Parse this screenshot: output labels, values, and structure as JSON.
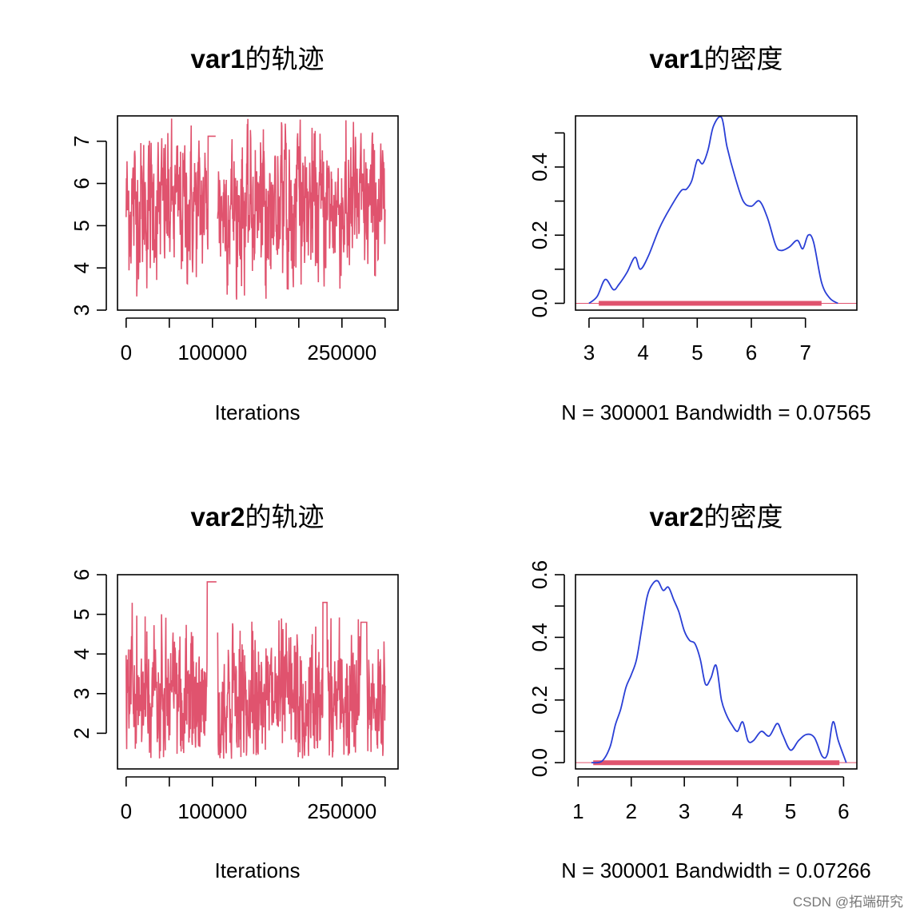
{
  "colors": {
    "trace": "#e0536e",
    "density": "#2a3fd6",
    "rug": "#e0536e",
    "axis": "#000000"
  },
  "watermark": "CSDN @拓端研究",
  "chart_data": [
    {
      "id": "var1-trace",
      "type": "line",
      "title_var": "var1",
      "title_suffix": "的轨迹",
      "xlabel": "Iterations",
      "xlim": [
        -10000,
        315000
      ],
      "ylim": [
        3,
        7.6
      ],
      "xticks": [
        0,
        50000,
        100000,
        150000,
        200000,
        250000,
        300000
      ],
      "xtick_labels": [
        "0",
        "",
        "100000",
        "",
        "",
        "250000",
        ""
      ],
      "yticks": [
        3,
        4,
        5,
        6,
        7
      ],
      "yticks_labels": [
        "3",
        "4",
        "5",
        "6",
        "7"
      ],
      "n_iter": 300001,
      "range": [
        3.18,
        7.55
      ],
      "mean": 5.45,
      "plateaus": [
        [
          95000,
          104000,
          7.12
        ]
      ],
      "gaps": [
        [
          97000,
          106000
        ]
      ],
      "series": [
        {
          "values_summary": "MCMC trace, values mostly between 3.6 and 7.2"
        }
      ]
    },
    {
      "id": "var1-density",
      "type": "line",
      "title_var": "var1",
      "title_suffix": "的密度",
      "xlabel": "N = 300001   Bandwidth = 0.07565",
      "xlim": [
        2.75,
        7.95
      ],
      "ylim": [
        -0.02,
        0.55
      ],
      "xticks": [
        3,
        4,
        5,
        6,
        7
      ],
      "xtick_labels": [
        "3",
        "4",
        "5",
        "6",
        "7"
      ],
      "yticks": [
        0,
        0.1,
        0.2,
        0.3,
        0.4,
        0.5
      ],
      "yticks_labels": [
        "0.0",
        "",
        "0.2",
        "",
        "0.4",
        ""
      ],
      "x": [
        3.0,
        3.15,
        3.3,
        3.45,
        3.55,
        3.7,
        3.85,
        3.95,
        4.1,
        4.3,
        4.5,
        4.7,
        4.8,
        4.9,
        5.0,
        5.1,
        5.2,
        5.3,
        5.45,
        5.55,
        5.7,
        5.85,
        6.0,
        6.15,
        6.3,
        6.45,
        6.55,
        6.7,
        6.85,
        6.95,
        7.05,
        7.15,
        7.3,
        7.45,
        7.6
      ],
      "y": [
        0.0,
        0.02,
        0.07,
        0.04,
        0.055,
        0.09,
        0.135,
        0.1,
        0.14,
        0.22,
        0.28,
        0.33,
        0.335,
        0.36,
        0.42,
        0.41,
        0.45,
        0.52,
        0.545,
        0.46,
        0.37,
        0.3,
        0.285,
        0.3,
        0.25,
        0.17,
        0.155,
        0.165,
        0.185,
        0.16,
        0.2,
        0.18,
        0.06,
        0.015,
        0.0
      ],
      "rug_range": [
        3.2,
        7.3
      ]
    },
    {
      "id": "var2-trace",
      "type": "line",
      "title_var": "var2",
      "title_suffix": "的轨迹",
      "xlabel": "Iterations",
      "xlim": [
        -10000,
        315000
      ],
      "ylim": [
        1.1,
        6.0
      ],
      "xticks": [
        0,
        50000,
        100000,
        150000,
        200000,
        250000,
        300000
      ],
      "xtick_labels": [
        "0",
        "",
        "100000",
        "",
        "",
        "250000",
        ""
      ],
      "yticks": [
        2,
        3,
        4,
        5,
        6
      ],
      "yticks_labels": [
        "2",
        "3",
        "4",
        "5",
        "6"
      ],
      "n_iter": 300001,
      "range": [
        1.35,
        5.82
      ],
      "mean": 2.85,
      "plateaus": [
        [
          94000,
          105000,
          5.82
        ],
        [
          228000,
          233000,
          5.3
        ],
        [
          272000,
          279000,
          4.8
        ]
      ],
      "gaps": [
        [
          97000,
          106000
        ]
      ],
      "series": [
        {
          "values_summary": "MCMC trace, values mostly between 1.6 and 4.2"
        }
      ]
    },
    {
      "id": "var2-density",
      "type": "line",
      "title_var": "var2",
      "title_suffix": "的密度",
      "xlabel": "N = 300001   Bandwidth = 0.07266",
      "xlim": [
        0.95,
        6.25
      ],
      "ylim": [
        -0.02,
        0.6
      ],
      "xticks": [
        1,
        2,
        3,
        4,
        5,
        6
      ],
      "xtick_labels": [
        "1",
        "2",
        "3",
        "4",
        "5",
        "6"
      ],
      "yticks": [
        0,
        0.1,
        0.2,
        0.3,
        0.4,
        0.5,
        0.6
      ],
      "yticks_labels": [
        "0.0",
        "",
        "0.2",
        "",
        "0.4",
        "",
        "0.6"
      ],
      "x": [
        1.25,
        1.45,
        1.6,
        1.7,
        1.8,
        1.9,
        2.0,
        2.1,
        2.2,
        2.3,
        2.4,
        2.5,
        2.6,
        2.7,
        2.8,
        2.9,
        3.0,
        3.1,
        3.2,
        3.3,
        3.4,
        3.5,
        3.6,
        3.7,
        3.8,
        3.9,
        4.0,
        4.1,
        4.2,
        4.3,
        4.45,
        4.6,
        4.75,
        4.85,
        5.0,
        5.15,
        5.3,
        5.45,
        5.6,
        5.7,
        5.8,
        5.9,
        6.05
      ],
      "y": [
        0.0,
        0.005,
        0.05,
        0.12,
        0.17,
        0.24,
        0.28,
        0.33,
        0.43,
        0.53,
        0.57,
        0.58,
        0.55,
        0.56,
        0.52,
        0.48,
        0.42,
        0.39,
        0.38,
        0.33,
        0.25,
        0.27,
        0.31,
        0.2,
        0.15,
        0.12,
        0.1,
        0.13,
        0.07,
        0.07,
        0.1,
        0.085,
        0.125,
        0.09,
        0.04,
        0.07,
        0.09,
        0.08,
        0.02,
        0.03,
        0.13,
        0.07,
        0.0
      ],
      "rug_range": [
        1.3,
        5.9
      ]
    }
  ]
}
